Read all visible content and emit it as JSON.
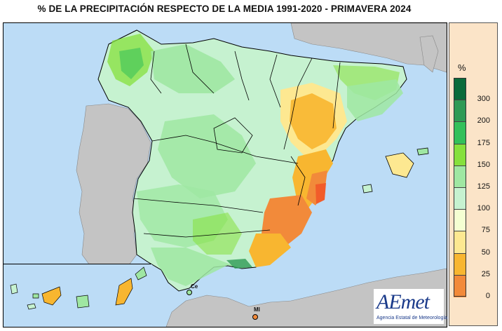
{
  "title": "% DE LA PRECIPITACIÓN RESPECTO DE LA MEDIA 1991-2020 - PRIMAVERA 2024",
  "legend": {
    "unit": "%",
    "items": [
      {
        "label": "300",
        "color": "#0a6b3b"
      },
      {
        "label": "200",
        "color": "#2e9a55"
      },
      {
        "label": "175",
        "color": "#33c05a"
      },
      {
        "label": "150",
        "color": "#86e03c"
      },
      {
        "label": "125",
        "color": "#9fe7a2"
      },
      {
        "label": "100",
        "color": "#c6f2d0"
      },
      {
        "label": "75",
        "color": "#f4ffd2"
      },
      {
        "label": "50",
        "color": "#fde891"
      },
      {
        "label": "25",
        "color": "#f8b630"
      },
      {
        "label": "0",
        "color": "#f28a3a"
      }
    ],
    "bottom_color": "#f25c2a"
  },
  "cities": {
    "ceuta": "Ce",
    "melilla": "Ml"
  },
  "logo": {
    "name": "AEmet",
    "subtitle": "Agencia Estatal de Meteorología"
  },
  "colors": {
    "sea": "#bcdcf6",
    "foreign_land": "#c4c4c4",
    "legend_bg": "#fbe4c8"
  }
}
